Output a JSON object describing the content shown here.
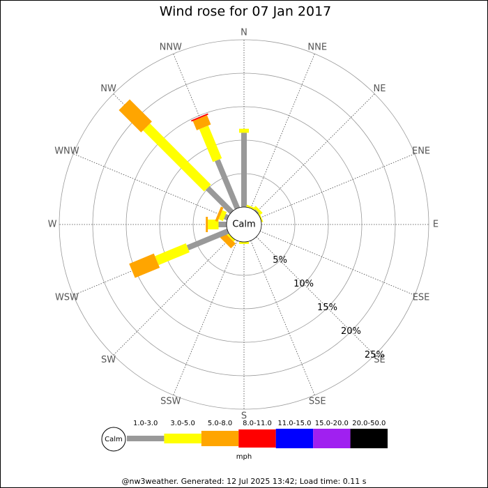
{
  "chart_data": {
    "type": "windrose",
    "title": "Wind rose for 07 Jan 2017",
    "directions": [
      "N",
      "NNE",
      "NE",
      "ENE",
      "E",
      "ESE",
      "SE",
      "SSE",
      "S",
      "SSW",
      "SW",
      "WSW",
      "W",
      "WNW",
      "NW",
      "NNW"
    ],
    "series": [
      {
        "name": "1.0-3.0",
        "color": "#999999",
        "values": [
          11.1,
          0,
          0.2,
          0,
          0,
          0,
          0,
          0,
          0,
          0,
          0,
          6.5,
          1.2,
          0.5,
          5.1,
          7.8
        ]
      },
      {
        "name": "3.0-5.0",
        "color": "#ffff00",
        "values": [
          0.6,
          0.3,
          0.4,
          0.2,
          0,
          0,
          0,
          0,
          0.3,
          0,
          0.3,
          5.0,
          1.6,
          0.7,
          12.9,
          5.3
        ]
      },
      {
        "name": "5.0-8.0",
        "color": "#ffa500",
        "values": [
          0,
          0,
          0,
          0,
          0,
          0,
          0,
          0,
          0,
          0,
          1.0,
          4.0,
          0.3,
          0.4,
          4.7,
          1.5
        ]
      },
      {
        "name": "8.0-11.0",
        "color": "#ff0000",
        "values": [
          0,
          0,
          0,
          0,
          0,
          0,
          0,
          0,
          0,
          0,
          0,
          0,
          0,
          0,
          0,
          0.2
        ]
      },
      {
        "name": "11.0-15.0",
        "color": "#0000ff",
        "values": [
          0,
          0,
          0,
          0,
          0,
          0,
          0,
          0,
          0,
          0,
          0,
          0,
          0,
          0,
          0,
          0
        ]
      },
      {
        "name": "15.0-20.0",
        "color": "#a020f0",
        "values": [
          0,
          0,
          0,
          0,
          0,
          0,
          0,
          0,
          0,
          0,
          0,
          0,
          0,
          0,
          0,
          0
        ]
      },
      {
        "name": "20.0-50.0",
        "color": "#000000",
        "values": [
          0,
          0,
          0,
          0,
          0,
          0,
          0,
          0,
          0,
          0,
          0,
          0,
          0,
          0,
          0,
          0
        ]
      }
    ],
    "rlim": [
      0,
      25
    ],
    "rticks": [
      {
        "value": 5,
        "label": "5%"
      },
      {
        "value": 10,
        "label": "10%"
      },
      {
        "value": 15,
        "label": "15%"
      },
      {
        "value": 20,
        "label": "20%"
      },
      {
        "value": 25,
        "label": "25%"
      }
    ],
    "calm_label": "Calm",
    "units": "mph",
    "footer": "@nw3weather. Generated: 12 Jul 2025 13:42; Load time: 0.11 s"
  }
}
